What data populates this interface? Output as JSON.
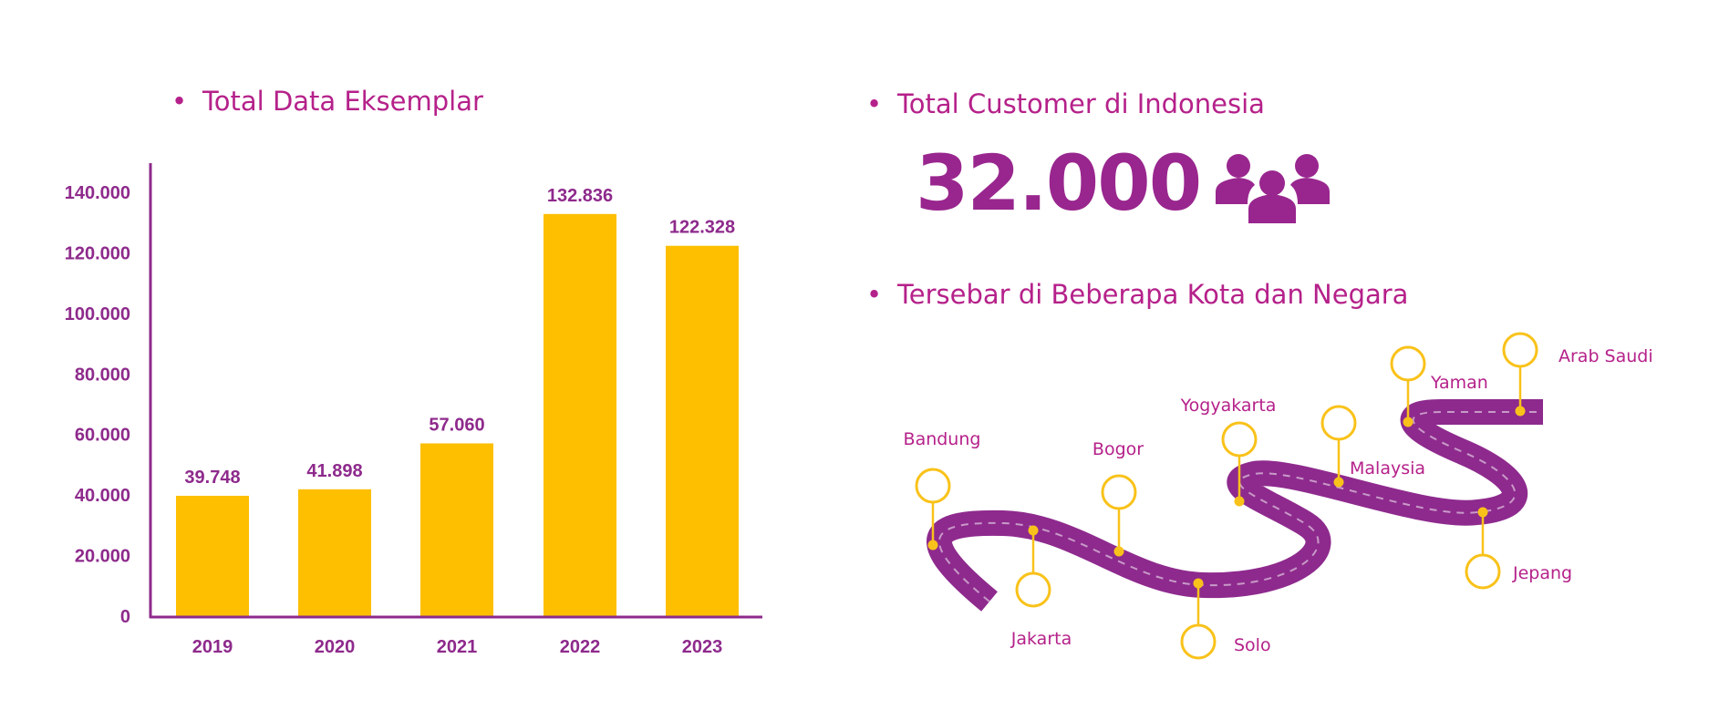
{
  "left_section": {
    "bullet": "•",
    "title": "Total Data Eksemplar"
  },
  "right_section": {
    "customer_heading": {
      "bullet": "•",
      "title": "Total Customer di Indonesia"
    },
    "customer_count": "32.000",
    "customer_icon": "people-group-icon",
    "spread_heading": {
      "bullet": "•",
      "title": "Tersebar di Beberapa Kota dan Negara"
    },
    "locations": [
      "Bandung",
      "Jakarta",
      "Bogor",
      "Solo",
      "Yogyakarta",
      "Malaysia",
      "Jepang",
      "Yaman",
      "Arab Saudi"
    ]
  },
  "colors": {
    "bar": "#FDBF00",
    "axis": "#8e2a8c",
    "heading": "#b5218a",
    "road": "#8e2a8d",
    "marker": "#F9C21A"
  },
  "chart_data": {
    "type": "bar",
    "title": "Total Data Eksemplar",
    "categories": [
      "2019",
      "2020",
      "2021",
      "2022",
      "2023"
    ],
    "values": [
      39748,
      41898,
      57060,
      132836,
      122328
    ],
    "value_labels": [
      "39.748",
      "41.898",
      "57.060",
      "132.836",
      "122.328"
    ],
    "ylim": [
      0,
      140000
    ],
    "yticks": [
      0,
      20000,
      40000,
      60000,
      80000,
      100000,
      120000,
      140000
    ],
    "ytick_labels": [
      "0",
      "20.000",
      "40.000",
      "60.000",
      "80.000",
      "100.000",
      "120.000",
      "140.000"
    ],
    "grid": false,
    "legend": "none",
    "xlabel": "",
    "ylabel": ""
  }
}
